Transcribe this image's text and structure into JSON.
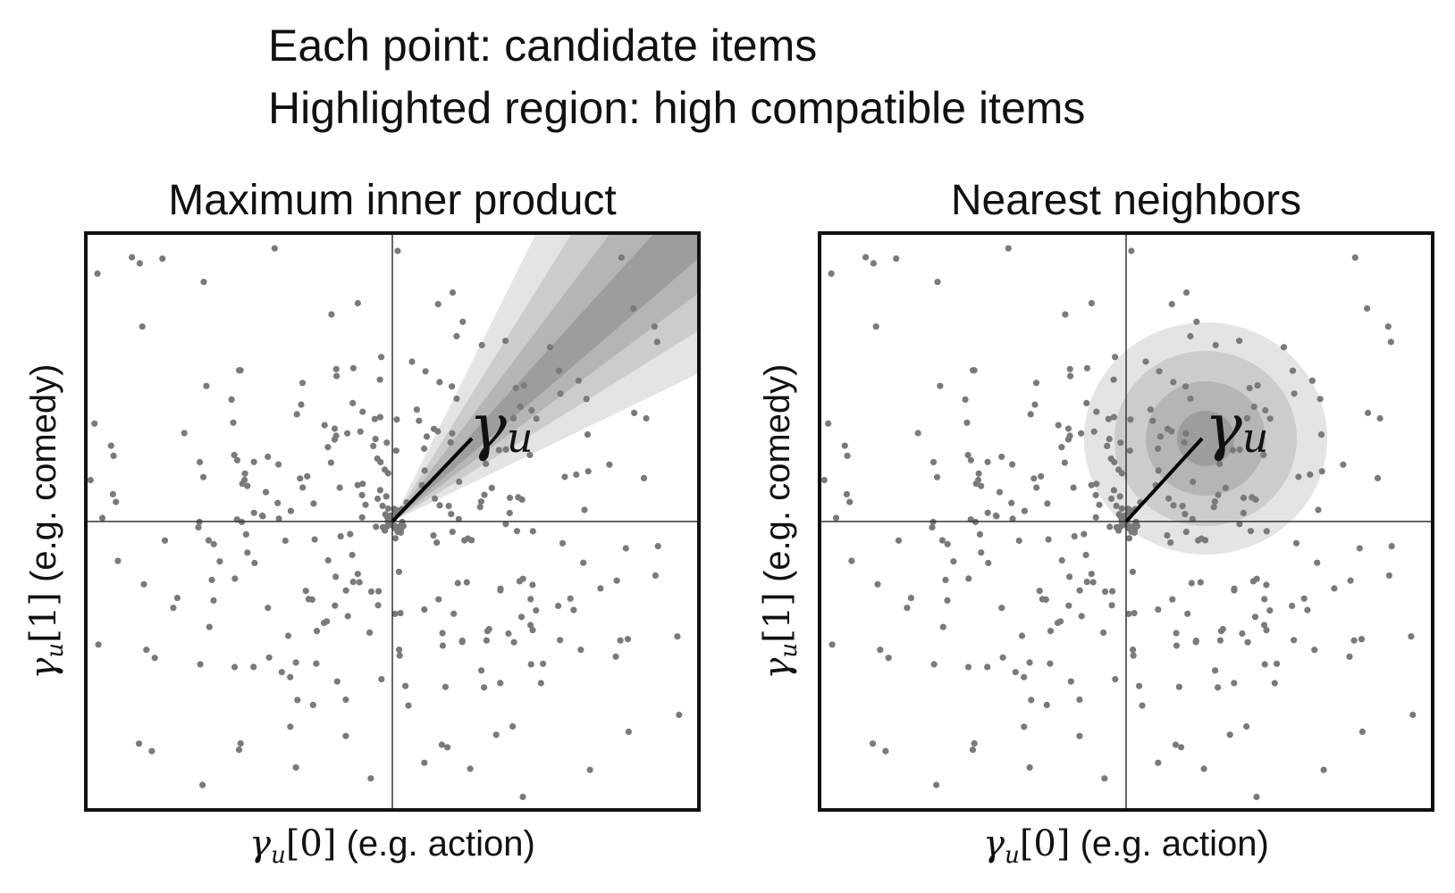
{
  "header": {
    "line1": "Each point: candidate items",
    "line2": "Highlighted region: high compatible items"
  },
  "colors": {
    "point": "#7a7a7a",
    "frame": "#111111",
    "axis": "#333333",
    "band_light": "#e4e4e4",
    "band_mid1": "#cccccc",
    "band_mid2": "#b5b5b5",
    "band_dark": "#9d9d9d",
    "vector": "#000000"
  },
  "chart_data": [
    {
      "type": "scatter",
      "title": "Maximum inner product",
      "xlabel": "γ_u[0] (e.g. action)",
      "ylabel": "γ_u[1] (e.g. comedy)",
      "xlabel_parts": {
        "sym": "γ",
        "sub": "u",
        "idx": "[0]",
        "text": " (e.g. action)"
      },
      "ylabel_parts": {
        "sym": "γ",
        "sub": "u",
        "idx": "[1]",
        "text": " (e.g. comedy)"
      },
      "xlim": [
        -1,
        1
      ],
      "ylim": [
        -1,
        1
      ],
      "grid": false,
      "ticks": false,
      "highlight": {
        "kind": "cone",
        "direction": [
          1,
          1
        ],
        "levels": 4
      },
      "vector": {
        "label": "γ",
        "sub": "u",
        "from": [
          0,
          0
        ],
        "to": [
          0.26,
          0.29
        ]
      }
    },
    {
      "type": "scatter",
      "title": "Nearest neighbors",
      "xlabel": "γ_u[0] (e.g. action)",
      "ylabel": "γ_u[1] (e.g. comedy)",
      "xlabel_parts": {
        "sym": "γ",
        "sub": "u",
        "idx": "[0]",
        "text": " (e.g. action)"
      },
      "ylabel_parts": {
        "sym": "γ",
        "sub": "u",
        "idx": "[1]",
        "text": " (e.g. comedy)"
      },
      "xlim": [
        -1,
        1
      ],
      "ylim": [
        -1,
        1
      ],
      "grid": false,
      "ticks": false,
      "highlight": {
        "kind": "concentric",
        "center": [
          0.26,
          0.29
        ],
        "radii": [
          0.39,
          0.29,
          0.19,
          0.09
        ]
      },
      "vector": {
        "label": "γ",
        "sub": "u",
        "from": [
          0,
          0
        ],
        "to": [
          0.26,
          0.29
        ]
      }
    }
  ]
}
